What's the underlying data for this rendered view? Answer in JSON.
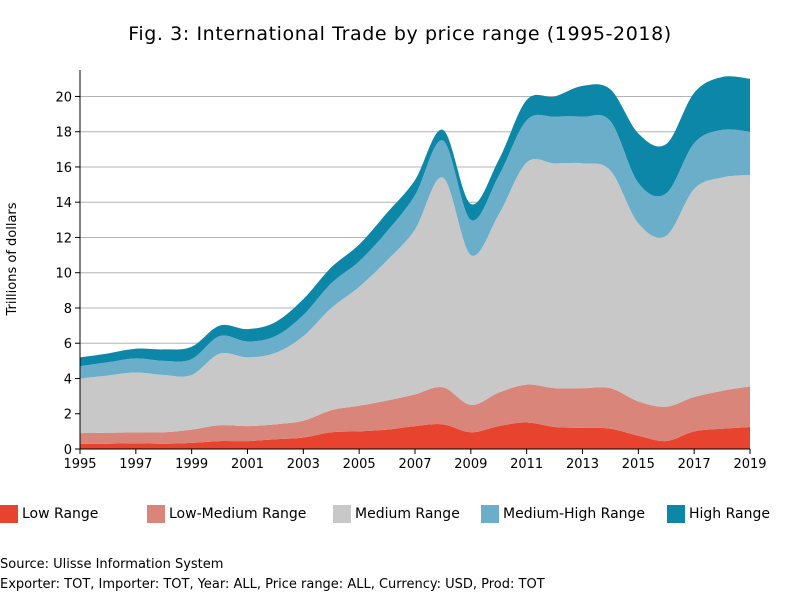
{
  "chart_data": {
    "type": "area",
    "stacked": true,
    "title": "Fig. 3: International Trade by price range (1995-2018)",
    "ylabel": "Trillions of dollars",
    "xlabel": "",
    "xlim": [
      1995,
      2019
    ],
    "ylim": [
      0,
      21.5
    ],
    "x_ticks": [
      "1995",
      "1997",
      "1999",
      "2001",
      "2003",
      "2005",
      "2007",
      "2009",
      "2011",
      "2013",
      "2015",
      "2017",
      "2019"
    ],
    "y_ticks": [
      "0",
      "2",
      "4",
      "6",
      "8",
      "10",
      "12",
      "14",
      "16",
      "18",
      "20"
    ],
    "x": [
      1995,
      1996,
      1997,
      1998,
      1999,
      2000,
      2001,
      2002,
      2003,
      2004,
      2005,
      2006,
      2007,
      2008,
      2009,
      2010,
      2011,
      2012,
      2013,
      2014,
      2015,
      2016,
      2017,
      2018,
      2019
    ],
    "series": [
      {
        "name": "Low Range",
        "color": "#e8432f",
        "values": [
          0.3,
          0.3,
          0.32,
          0.3,
          0.35,
          0.45,
          0.45,
          0.55,
          0.65,
          0.95,
          1.0,
          1.1,
          1.3,
          1.4,
          0.95,
          1.3,
          1.5,
          1.25,
          1.2,
          1.15,
          0.75,
          0.45,
          1.0,
          1.15,
          1.25
        ]
      },
      {
        "name": "Low-Medium Range",
        "color": "#d9857a",
        "values": [
          0.6,
          0.62,
          0.62,
          0.65,
          0.75,
          0.9,
          0.85,
          0.85,
          0.95,
          1.25,
          1.45,
          1.65,
          1.8,
          2.1,
          1.55,
          1.9,
          2.15,
          2.2,
          2.25,
          2.3,
          1.95,
          1.95,
          1.95,
          2.15,
          2.3
        ]
      },
      {
        "name": "Medium Range",
        "color": "#c8c8c8",
        "values": [
          3.1,
          3.25,
          3.4,
          3.25,
          3.1,
          4.05,
          3.9,
          4.05,
          4.8,
          5.8,
          6.75,
          7.95,
          9.35,
          11.9,
          8.5,
          10.1,
          12.6,
          12.75,
          12.75,
          12.35,
          10.1,
          9.7,
          11.8,
          12.1,
          12.0
        ]
      },
      {
        "name": "Medium-High Range",
        "color": "#6aaeca",
        "values": [
          0.7,
          0.75,
          0.8,
          0.8,
          0.9,
          1.0,
          0.9,
          0.95,
          1.2,
          1.4,
          1.45,
          1.65,
          1.95,
          2.1,
          2.0,
          2.2,
          2.4,
          2.65,
          2.65,
          2.8,
          2.3,
          2.4,
          2.6,
          2.7,
          2.45
        ]
      },
      {
        "name": "High Range",
        "color": "#0d87a7",
        "values": [
          0.5,
          0.5,
          0.55,
          0.65,
          0.7,
          0.6,
          0.7,
          0.8,
          0.9,
          0.9,
          0.95,
          1.05,
          0.85,
          0.6,
          0.9,
          0.9,
          1.15,
          1.15,
          1.75,
          1.8,
          2.8,
          2.8,
          2.85,
          3.0,
          3.0
        ]
      }
    ],
    "legend_position": "bottom",
    "grid": true
  },
  "footer": {
    "source": "Source: Ulisse Information System",
    "params": "Exporter: TOT, Importer: TOT, Year: ALL, Price range: ALL, Currency: USD, Prod: TOT"
  }
}
